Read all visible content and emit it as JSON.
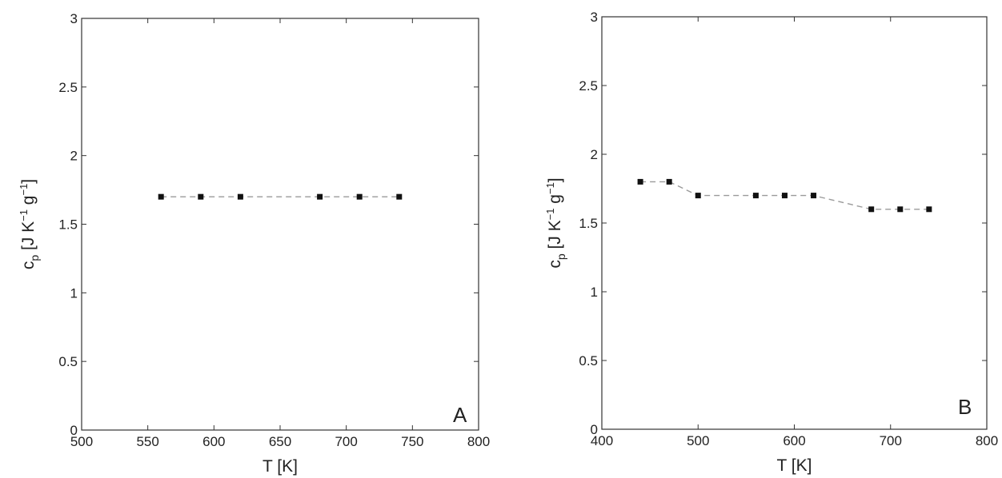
{
  "chart_data": [
    {
      "type": "line",
      "panel_label": "A",
      "xlabel": "T  [K]",
      "ylabel": {
        "main": "c",
        "sub": "p",
        "unit_open": " [J K",
        "unit_exp1": "−1",
        "unit_mid": " g",
        "unit_exp2": "−1",
        "unit_close": "]"
      },
      "xlim": [
        500,
        800
      ],
      "ylim": [
        0,
        3
      ],
      "xticks": [
        500,
        550,
        600,
        650,
        700,
        750,
        800
      ],
      "yticks": [
        0,
        0.5,
        1,
        1.5,
        2,
        2.5,
        3
      ],
      "xtick_labels": [
        "500",
        "550",
        "600",
        "650",
        "700",
        "750",
        "800"
      ],
      "ytick_labels": [
        "0",
        "0.5",
        "1",
        "1.5",
        "2",
        "2.5",
        "3"
      ],
      "grid": false,
      "marker": "filled-square",
      "line_style": "dashed",
      "series": [
        {
          "x": [
            560,
            590,
            620,
            680,
            710,
            740
          ],
          "y": [
            1.7,
            1.7,
            1.7,
            1.7,
            1.7,
            1.7
          ]
        }
      ]
    },
    {
      "type": "line",
      "panel_label": "B",
      "xlabel": "T  [K]",
      "ylabel": {
        "main": "c",
        "sub": "p",
        "unit_open": " [J K",
        "unit_exp1": "−1",
        "unit_mid": " g",
        "unit_exp2": "−1",
        "unit_close": "]"
      },
      "xlim": [
        400,
        800
      ],
      "ylim": [
        0,
        3
      ],
      "xticks": [
        400,
        500,
        600,
        700,
        800
      ],
      "yticks": [
        0,
        0.5,
        1,
        1.5,
        2,
        2.5,
        3
      ],
      "xtick_labels": [
        "400",
        "500",
        "600",
        "700",
        "800"
      ],
      "ytick_labels": [
        "0",
        "0.5",
        "1",
        "1.5",
        "2",
        "2.5",
        "3"
      ],
      "grid": false,
      "marker": "filled-square",
      "line_style": "dashed",
      "series": [
        {
          "x": [
            440,
            470,
            500,
            560,
            590,
            620,
            680,
            710,
            740
          ],
          "y": [
            1.8,
            1.8,
            1.7,
            1.7,
            1.7,
            1.7,
            1.6,
            1.6,
            1.6
          ]
        }
      ]
    }
  ]
}
